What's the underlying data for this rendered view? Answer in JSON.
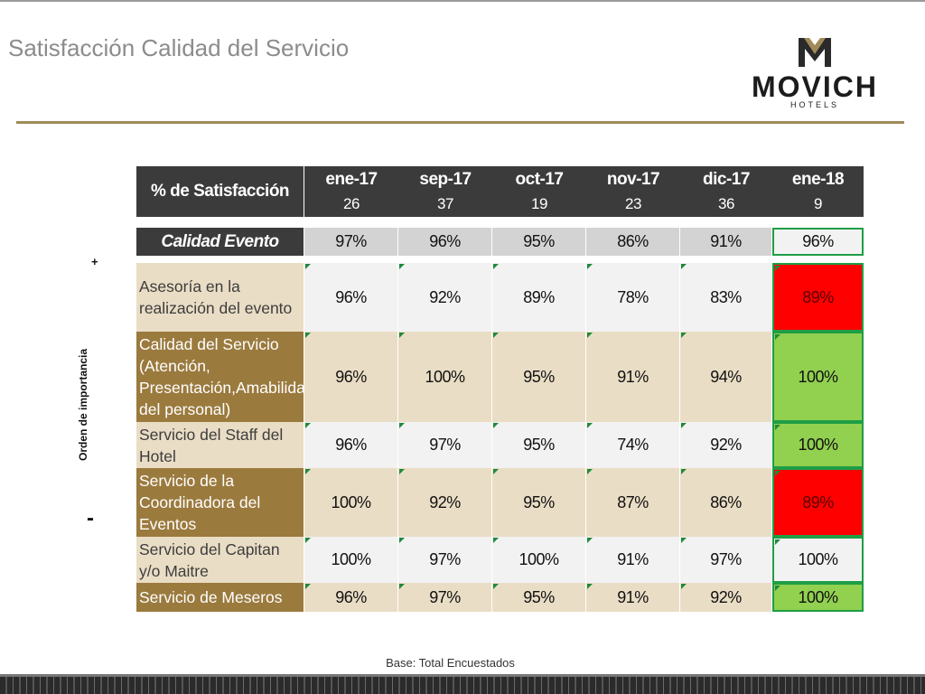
{
  "title": "Satisfacción Calidad del Servicio",
  "logo": {
    "word": "MOVICH",
    "sub": "HOTELS"
  },
  "axis": {
    "plus": "+",
    "minus": "-",
    "label": "Orden de importancia"
  },
  "header": {
    "label": "% de Satisfacción",
    "months": [
      {
        "month": "ene-17",
        "n": "26"
      },
      {
        "month": "sep-17",
        "n": "37"
      },
      {
        "month": "oct-17",
        "n": "19"
      },
      {
        "month": "nov-17",
        "n": "23"
      },
      {
        "month": "dic-17",
        "n": "36"
      },
      {
        "month": "ene-18",
        "n": "9"
      }
    ]
  },
  "calidad_evento": {
    "label": "Calidad Evento",
    "values": [
      "97%",
      "96%",
      "95%",
      "86%",
      "91%",
      "96%"
    ]
  },
  "rows": [
    {
      "label": "Asesoría en la realización del evento",
      "values": [
        "96%",
        "92%",
        "89%",
        "78%",
        "83%",
        "89%"
      ]
    },
    {
      "label": "Calidad del Servicio (Atención, Presentación,Amabilidad del personal)",
      "values": [
        "96%",
        "100%",
        "95%",
        "91%",
        "94%",
        "100%"
      ]
    },
    {
      "label": "Servicio del Staff del Hotel",
      "values": [
        "96%",
        "97%",
        "95%",
        "74%",
        "92%",
        "100%"
      ]
    },
    {
      "label": "Servicio de la Coordinadora del Eventos",
      "values": [
        "100%",
        "92%",
        "95%",
        "87%",
        "86%",
        "89%"
      ]
    },
    {
      "label": "Servicio del Capitan y/o Maitre",
      "values": [
        "100%",
        "97%",
        "100%",
        "91%",
        "97%",
        "100%"
      ]
    },
    {
      "label": "Servicio de Meseros",
      "values": [
        "96%",
        "97%",
        "95%",
        "91%",
        "92%",
        "100%"
      ]
    }
  ],
  "footer": "Base: Total Encuestados",
  "colors": {
    "accent": "#a08a5a",
    "header": "#3b3b3b",
    "label_dark": "#9b7a3e",
    "label_light": "#eaddc5",
    "red": "#ff0000",
    "green": "#92d050",
    "border_green": "#1e9e45"
  }
}
